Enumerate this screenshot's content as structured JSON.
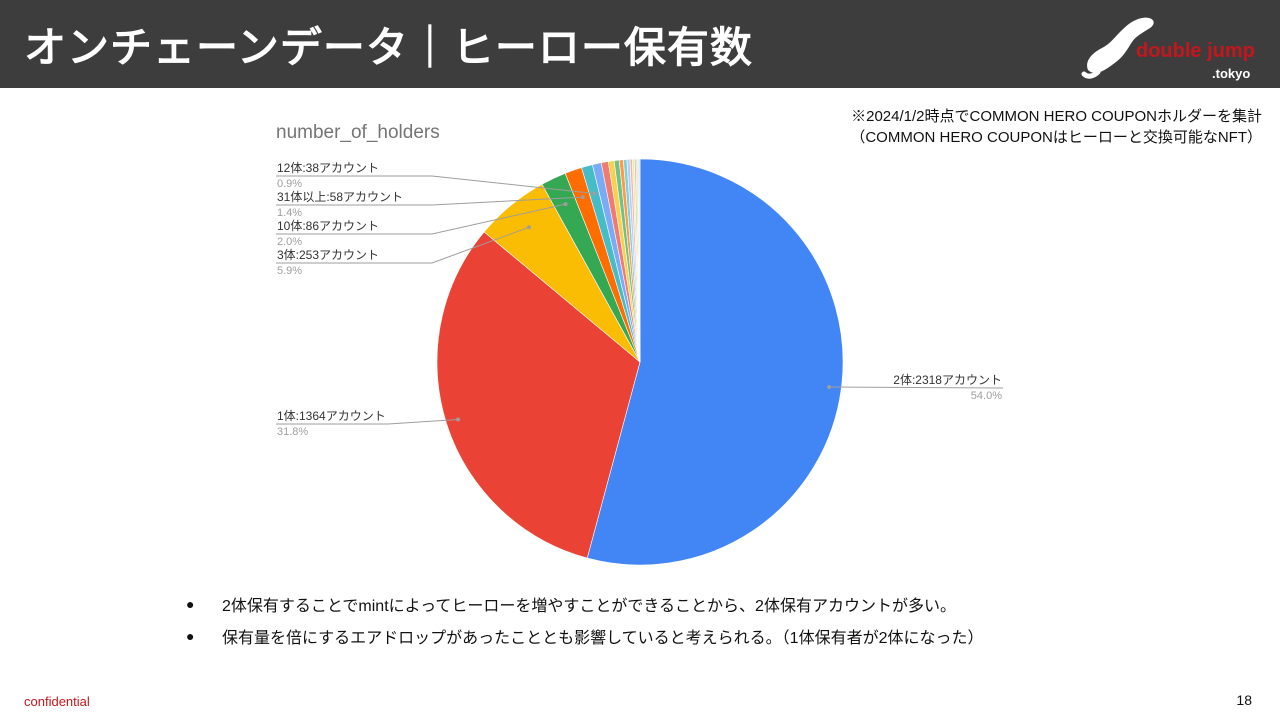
{
  "header": {
    "title": "オンチェーンデータ｜ヒーロー保有数",
    "logo_line1": "double jump",
    "logo_line2": ".tokyo"
  },
  "note": {
    "line1": "※2024/1/2時点でCOMMON HERO COUPONホルダーを集計",
    "line2": "（COMMON HERO COUPONはヒーローと交換可能なNFT）"
  },
  "chart_data": {
    "type": "pie",
    "title": "number_of_holders",
    "slices": [
      {
        "label": "2体:2318アカウント",
        "value": 2318,
        "percent": "54.0%",
        "color": "#4285f4",
        "labeled": true
      },
      {
        "label": "1体:1364アカウント",
        "value": 1364,
        "percent": "31.8%",
        "color": "#ea4335",
        "labeled": true
      },
      {
        "label": "3体:253アカウント",
        "value": 253,
        "percent": "5.9%",
        "color": "#fbbc04",
        "labeled": true
      },
      {
        "label": "10体:86アカウント",
        "value": 86,
        "percent": "2.0%",
        "color": "#34a853",
        "labeled": true
      },
      {
        "label": "31体以上:58アカウント",
        "value": 58,
        "percent": "1.4%",
        "color": "#ff6d01",
        "labeled": true
      },
      {
        "label": "12体:38アカウント",
        "value": 38,
        "percent": "0.9%",
        "color": "#46bdc6",
        "labeled": true
      },
      {
        "label": "",
        "value": 30,
        "percent": "",
        "color": "#7baaf7",
        "labeled": false
      },
      {
        "label": "",
        "value": 24,
        "percent": "",
        "color": "#f07b72",
        "labeled": false
      },
      {
        "label": "",
        "value": 20,
        "percent": "",
        "color": "#fcd04f",
        "labeled": false
      },
      {
        "label": "",
        "value": 17,
        "percent": "",
        "color": "#71c287",
        "labeled": false
      },
      {
        "label": "",
        "value": 14,
        "percent": "",
        "color": "#ff994d",
        "labeled": false
      },
      {
        "label": "",
        "value": 12,
        "percent": "",
        "color": "#7ed1d7",
        "labeled": false
      },
      {
        "label": "",
        "value": 10,
        "percent": "",
        "color": "#b3cefb",
        "labeled": false
      },
      {
        "label": "",
        "value": 8,
        "percent": "",
        "color": "#f7b4ae",
        "labeled": false
      },
      {
        "label": "",
        "value": 7,
        "percent": "",
        "color": "#fde49b",
        "labeled": false
      },
      {
        "label": "",
        "value": 6,
        "percent": "",
        "color": "#aedcba",
        "labeled": false
      },
      {
        "label": "",
        "value": 5,
        "percent": "",
        "color": "#ffc599",
        "labeled": false
      },
      {
        "label": "",
        "value": 4,
        "percent": "",
        "color": "#b8e5e8",
        "labeled": false
      },
      {
        "label": "",
        "value": 4,
        "percent": "",
        "color": "#d9d9d9",
        "labeled": false
      }
    ]
  },
  "bullets": [
    "2体保有することでmintによってヒーローを増やすことができることから、2体保有アカウントが多い。",
    "保有量を倍にするエアドロップがあったこととも影響していると考えられる。（1体保有者が2体になった）"
  ],
  "footer": {
    "confidential": "confidential",
    "page_number": "18"
  }
}
